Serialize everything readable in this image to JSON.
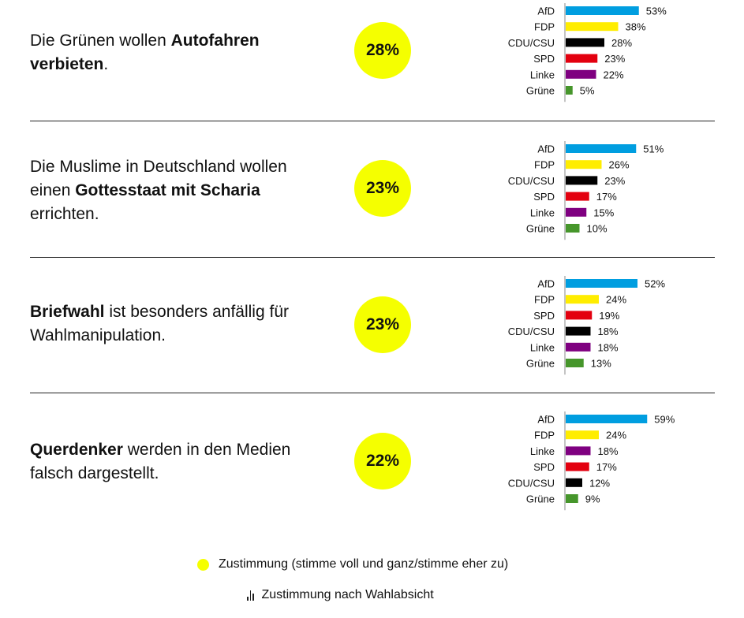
{
  "colors": {
    "AfD": "#009ee0",
    "FDP": "#ffed00",
    "CDU/CSU": "#000000",
    "SPD": "#e3000f",
    "Linke": "#7f0080",
    "Grüne": "#46962b",
    "circle": "#f5ff00"
  },
  "statements": [
    {
      "parts": [
        {
          "t": "Die Grünen wollen ",
          "b": false
        },
        {
          "t": "Autofahren verbieten",
          "b": true
        },
        {
          "t": ".",
          "b": false
        }
      ],
      "total": "28%"
    },
    {
      "parts": [
        {
          "t": "Die Muslime in Deutschland wollen einen ",
          "b": false
        },
        {
          "t": "Gottesstaat mit Scharia",
          "b": true
        },
        {
          "t": " errichten.",
          "b": false
        }
      ],
      "total": "23%"
    },
    {
      "parts": [
        {
          "t": "Briefwahl",
          "b": true
        },
        {
          "t": " ist besonders anfällig für Wahlmanipulation.",
          "b": false
        }
      ],
      "total": "23%"
    },
    {
      "parts": [
        {
          "t": "Querdenker",
          "b": true
        },
        {
          "t": " werden in den Medien falsch dargestellt.",
          "b": false
        }
      ],
      "total": "22%"
    }
  ],
  "chart_data": [
    {
      "type": "bar",
      "orientation": "horizontal",
      "title": "Die Grünen wollen Autofahren verbieten.",
      "overall": 28,
      "categories": [
        "AfD",
        "FDP",
        "CDU/CSU",
        "SPD",
        "Linke",
        "Grüne"
      ],
      "values": [
        53,
        38,
        28,
        23,
        22,
        5
      ],
      "unit": "%"
    },
    {
      "type": "bar",
      "orientation": "horizontal",
      "title": "Die Muslime in Deutschland wollen einen Gottesstaat mit Scharia errichten.",
      "overall": 23,
      "categories": [
        "AfD",
        "FDP",
        "CDU/CSU",
        "SPD",
        "Linke",
        "Grüne"
      ],
      "values": [
        51,
        26,
        23,
        17,
        15,
        10
      ],
      "unit": "%"
    },
    {
      "type": "bar",
      "orientation": "horizontal",
      "title": "Briefwahl ist besonders anfällig für Wahlmanipulation.",
      "overall": 23,
      "categories": [
        "AfD",
        "FDP",
        "SPD",
        "CDU/CSU",
        "Linke",
        "Grüne"
      ],
      "values": [
        52,
        24,
        19,
        18,
        18,
        13
      ],
      "unit": "%"
    },
    {
      "type": "bar",
      "orientation": "horizontal",
      "title": "Querdenker werden in den Medien falsch dargestellt.",
      "overall": 22,
      "categories": [
        "AfD",
        "FDP",
        "Linke",
        "SPD",
        "CDU/CSU",
        "Grüne"
      ],
      "values": [
        59,
        24,
        18,
        17,
        12,
        9
      ],
      "unit": "%"
    }
  ],
  "legend": {
    "circle_label": "Zustimmung (stimme voll und ganz/stimme eher zu)",
    "bars_label": "Zustimmung nach Wahlabsicht"
  }
}
